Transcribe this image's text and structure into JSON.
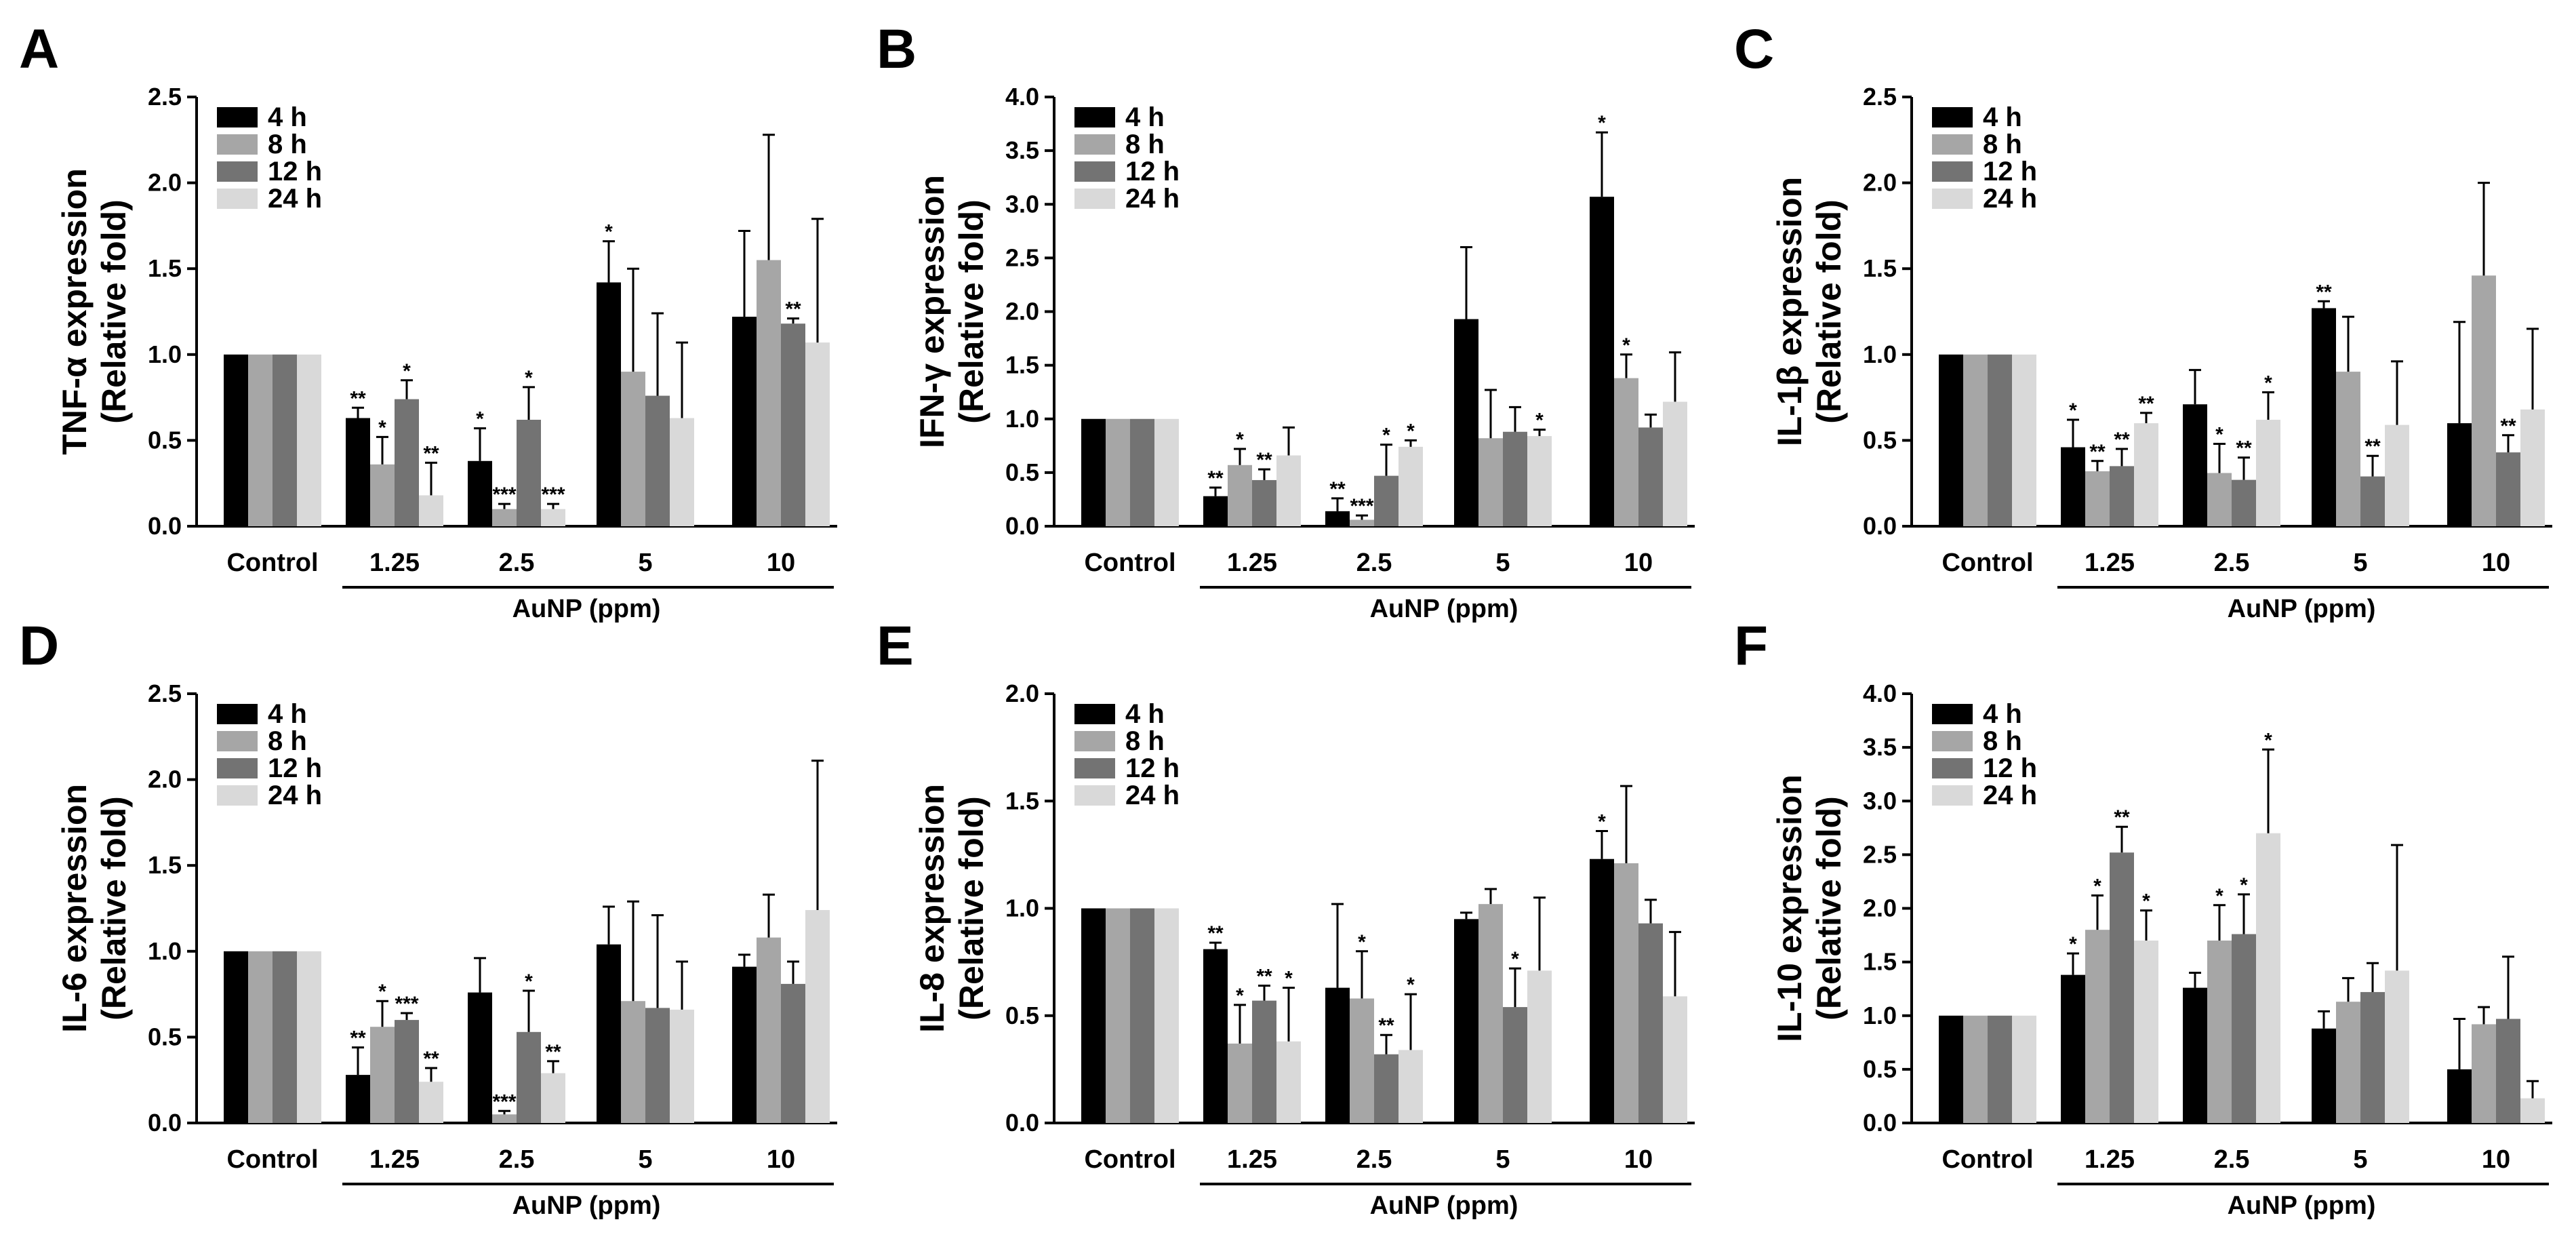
{
  "colors": {
    "series": [
      "#000000",
      "#a6a6a6",
      "#737373",
      "#d9d9d9"
    ],
    "axis": "#000000"
  },
  "chart_data": [
    {
      "panel_letter": "A",
      "type": "bar",
      "ylabel_line1": "TNF-α expression",
      "ylabel_line2": "(Relative fold)",
      "xlabel": "AuNP (ppm)",
      "categories": [
        "Control",
        "1.25",
        "2.5",
        "5",
        "10"
      ],
      "ylim": [
        0,
        2.5
      ],
      "yticks": [
        "0.0",
        "0.5",
        "1.0",
        "1.5",
        "2.0",
        "2.5"
      ],
      "ystep": 0.5,
      "series": [
        {
          "name": "4 h",
          "values": [
            1.0,
            0.63,
            0.38,
            1.42,
            1.22
          ],
          "errors": [
            0,
            0.06,
            0.19,
            0.24,
            0.5
          ],
          "sig": [
            "",
            "**",
            "*",
            "*",
            ""
          ]
        },
        {
          "name": "8 h",
          "values": [
            1.0,
            0.36,
            0.1,
            0.9,
            1.55
          ],
          "errors": [
            0,
            0.16,
            0.03,
            0.6,
            0.73
          ],
          "sig": [
            "",
            "*",
            "***",
            "",
            ""
          ]
        },
        {
          "name": "12 h",
          "values": [
            1.0,
            0.74,
            0.62,
            0.76,
            1.18
          ],
          "errors": [
            0,
            0.11,
            0.19,
            0.48,
            0.03
          ],
          "sig": [
            "",
            "*",
            "*",
            "",
            "**"
          ]
        },
        {
          "name": "24 h",
          "values": [
            1.0,
            0.18,
            0.1,
            0.63,
            1.07
          ],
          "errors": [
            0,
            0.19,
            0.03,
            0.44,
            0.72
          ],
          "sig": [
            "",
            "**",
            "***",
            "",
            ""
          ]
        }
      ]
    },
    {
      "panel_letter": "B",
      "type": "bar",
      "ylabel_line1": "IFN-γ expression",
      "ylabel_line2": "(Relative fold)",
      "xlabel": "AuNP (ppm)",
      "categories": [
        "Control",
        "1.25",
        "2.5",
        "5",
        "10"
      ],
      "ylim": [
        0,
        4.0
      ],
      "yticks": [
        "0.0",
        "0.5",
        "1.0",
        "1.5",
        "2.0",
        "2.5",
        "3.0",
        "3.5",
        "4.0"
      ],
      "ystep": 0.5,
      "series": [
        {
          "name": "4 h",
          "values": [
            1.0,
            0.28,
            0.14,
            1.93,
            3.07
          ],
          "errors": [
            0,
            0.08,
            0.12,
            0.67,
            0.6
          ],
          "sig": [
            "",
            "**",
            "**",
            "",
            "*"
          ]
        },
        {
          "name": "8 h",
          "values": [
            1.0,
            0.57,
            0.06,
            0.82,
            1.38
          ],
          "errors": [
            0,
            0.15,
            0.04,
            0.45,
            0.22
          ],
          "sig": [
            "",
            "*",
            "***",
            "",
            "*"
          ]
        },
        {
          "name": "12 h",
          "values": [
            1.0,
            0.43,
            0.47,
            0.88,
            0.92
          ],
          "errors": [
            0,
            0.1,
            0.29,
            0.23,
            0.12
          ],
          "sig": [
            "",
            "**",
            "*",
            "",
            ""
          ]
        },
        {
          "name": "24 h",
          "values": [
            1.0,
            0.66,
            0.74,
            0.84,
            1.16
          ],
          "errors": [
            0,
            0.26,
            0.06,
            0.06,
            0.46
          ],
          "sig": [
            "",
            "",
            "*",
            "*",
            ""
          ]
        }
      ]
    },
    {
      "panel_letter": "C",
      "type": "bar",
      "ylabel_line1": "IL-1β expression",
      "ylabel_line2": "(Relative fold)",
      "xlabel": "AuNP (ppm)",
      "categories": [
        "Control",
        "1.25",
        "2.5",
        "5",
        "10"
      ],
      "ylim": [
        0,
        2.5
      ],
      "yticks": [
        "0.0",
        "0.5",
        "1.0",
        "1.5",
        "2.0",
        "2.5"
      ],
      "ystep": 0.5,
      "series": [
        {
          "name": "4 h",
          "values": [
            1.0,
            0.46,
            0.71,
            1.27,
            0.6
          ],
          "errors": [
            0,
            0.16,
            0.2,
            0.04,
            0.59
          ],
          "sig": [
            "",
            "*",
            "",
            "**",
            ""
          ]
        },
        {
          "name": "8 h",
          "values": [
            1.0,
            0.32,
            0.31,
            0.9,
            1.46
          ],
          "errors": [
            0,
            0.06,
            0.17,
            0.32,
            0.54
          ],
          "sig": [
            "",
            "**",
            "*",
            "",
            ""
          ]
        },
        {
          "name": "12 h",
          "values": [
            1.0,
            0.35,
            0.27,
            0.29,
            0.43
          ],
          "errors": [
            0,
            0.1,
            0.13,
            0.12,
            0.1
          ],
          "sig": [
            "",
            "**",
            "**",
            "**",
            "**"
          ]
        },
        {
          "name": "24 h",
          "values": [
            1.0,
            0.6,
            0.62,
            0.59,
            0.68
          ],
          "errors": [
            0,
            0.06,
            0.16,
            0.37,
            0.47
          ],
          "sig": [
            "",
            "**",
            "*",
            "",
            ""
          ]
        }
      ]
    },
    {
      "panel_letter": "D",
      "type": "bar",
      "ylabel_line1": "IL-6 expression",
      "ylabel_line2": "(Relative fold)",
      "xlabel": "AuNP (ppm)",
      "categories": [
        "Control",
        "1.25",
        "2.5",
        "5",
        "10"
      ],
      "ylim": [
        0,
        2.5
      ],
      "yticks": [
        "0.0",
        "0.5",
        "1.0",
        "1.5",
        "2.0",
        "2.5"
      ],
      "ystep": 0.5,
      "series": [
        {
          "name": "4 h",
          "values": [
            1.0,
            0.28,
            0.76,
            1.04,
            0.91
          ],
          "errors": [
            0,
            0.16,
            0.2,
            0.22,
            0.07
          ],
          "sig": [
            "",
            "**",
            "",
            "",
            ""
          ]
        },
        {
          "name": "8 h",
          "values": [
            1.0,
            0.56,
            0.05,
            0.71,
            1.08
          ],
          "errors": [
            0,
            0.15,
            0.02,
            0.58,
            0.25
          ],
          "sig": [
            "",
            "*",
            "***",
            "",
            ""
          ]
        },
        {
          "name": "12 h",
          "values": [
            1.0,
            0.6,
            0.53,
            0.67,
            0.81
          ],
          "errors": [
            0,
            0.04,
            0.24,
            0.54,
            0.13
          ],
          "sig": [
            "",
            "***",
            "*",
            "",
            ""
          ]
        },
        {
          "name": "24 h",
          "values": [
            1.0,
            0.24,
            0.29,
            0.66,
            1.24
          ],
          "errors": [
            0,
            0.08,
            0.07,
            0.28,
            0.87
          ],
          "sig": [
            "",
            "**",
            "**",
            "",
            ""
          ]
        }
      ]
    },
    {
      "panel_letter": "E",
      "type": "bar",
      "ylabel_line1": "IL-8 expression",
      "ylabel_line2": "(Relative fold)",
      "xlabel": "AuNP (ppm)",
      "categories": [
        "Control",
        "1.25",
        "2.5",
        "5",
        "10"
      ],
      "ylim": [
        0,
        2.0
      ],
      "yticks": [
        "0.0",
        "0.5",
        "1.0",
        "1.5",
        "2.0"
      ],
      "ystep": 0.5,
      "series": [
        {
          "name": "4 h",
          "values": [
            1.0,
            0.81,
            0.63,
            0.95,
            1.23
          ],
          "errors": [
            0,
            0.03,
            0.39,
            0.03,
            0.13
          ],
          "sig": [
            "",
            "**",
            "",
            "",
            "*"
          ]
        },
        {
          "name": "8 h",
          "values": [
            1.0,
            0.37,
            0.58,
            1.02,
            1.21
          ],
          "errors": [
            0,
            0.18,
            0.22,
            0.07,
            0.36
          ],
          "sig": [
            "",
            "*",
            "*",
            "",
            ""
          ]
        },
        {
          "name": "12 h",
          "values": [
            1.0,
            0.57,
            0.32,
            0.54,
            0.93
          ],
          "errors": [
            0,
            0.07,
            0.09,
            0.18,
            0.11
          ],
          "sig": [
            "",
            "**",
            "**",
            "*",
            ""
          ]
        },
        {
          "name": "24 h",
          "values": [
            1.0,
            0.38,
            0.34,
            0.71,
            0.59
          ],
          "errors": [
            0,
            0.25,
            0.26,
            0.34,
            0.3
          ],
          "sig": [
            "",
            "*",
            "*",
            "",
            ""
          ]
        }
      ]
    },
    {
      "panel_letter": "F",
      "type": "bar",
      "ylabel_line1": "IL-10 expression",
      "ylabel_line2": "(Relative fold)",
      "xlabel": "AuNP (ppm)",
      "categories": [
        "Control",
        "1.25",
        "2.5",
        "5",
        "10"
      ],
      "ylim": [
        0,
        4.0
      ],
      "yticks": [
        "0.0",
        "0.5",
        "1.0",
        "1.5",
        "2.0",
        "2.5",
        "3.0",
        "3.5",
        "4.0"
      ],
      "ystep": 0.5,
      "series": [
        {
          "name": "4 h",
          "values": [
            1.0,
            1.38,
            1.26,
            0.88,
            0.5
          ],
          "errors": [
            0,
            0.2,
            0.14,
            0.16,
            0.47
          ],
          "sig": [
            "",
            "*",
            "",
            "",
            ""
          ]
        },
        {
          "name": "8 h",
          "values": [
            1.0,
            1.8,
            1.7,
            1.13,
            0.92
          ],
          "errors": [
            0,
            0.32,
            0.33,
            0.22,
            0.16
          ],
          "sig": [
            "",
            "*",
            "*",
            "",
            ""
          ]
        },
        {
          "name": "12 h",
          "values": [
            1.0,
            2.52,
            1.76,
            1.22,
            0.97
          ],
          "errors": [
            0,
            0.24,
            0.37,
            0.27,
            0.58
          ],
          "sig": [
            "",
            "**",
            "*",
            "",
            ""
          ]
        },
        {
          "name": "24 h",
          "values": [
            1.0,
            1.7,
            2.7,
            1.42,
            0.23
          ],
          "errors": [
            0,
            0.28,
            0.78,
            1.17,
            0.16
          ],
          "sig": [
            "",
            "*",
            "*",
            "",
            ""
          ]
        }
      ]
    }
  ]
}
